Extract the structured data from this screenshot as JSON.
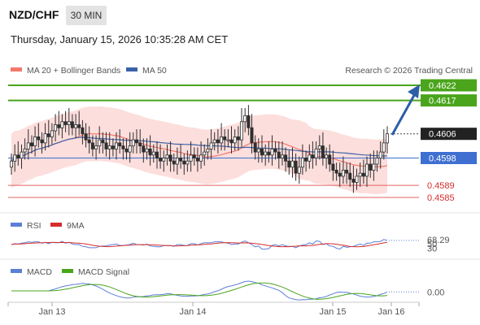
{
  "header": {
    "pair": "NZD/CHF",
    "timeframe": "30 MIN",
    "timestamp": "Thursday, January 15, 2026 10:35:28 AM CET"
  },
  "legend": {
    "ma20": "MA 20 + Bollinger Bands",
    "ma50": "MA 50",
    "credit": "Research © 2026 Trading Central",
    "rsi": "RSI",
    "rsi_ma": "9MA",
    "macd": "MACD",
    "macd_signal": "MACD Signal"
  },
  "colors": {
    "candle": "#2f2f2f",
    "bollinger_fill": "#fbd3d0",
    "ma20": "#f4776b",
    "ma50": "#3a63a8",
    "resistance": "#4aa51c",
    "pivot": "#3f6fd1",
    "support": "#e06060",
    "arrow": "#2c5ea8",
    "rsi": "#5b7fd6",
    "rsi_ma": "#d62c2c",
    "macd": "#5b7fd6",
    "macd_signal": "#4aa51c"
  },
  "chart_data": {
    "type": "candlestick",
    "symbol": "NZD/CHF",
    "interval": "30 MIN",
    "x_ticks": [
      "Jan 13",
      "Jan 14",
      "Jan 15",
      "Jan 16"
    ],
    "y_range": [
      0.4577,
      0.4628
    ],
    "levels": [
      {
        "role": "resistance",
        "label": "0.4622",
        "value": 0.4622
      },
      {
        "role": "resistance",
        "label": "0.4617",
        "value": 0.4617
      },
      {
        "role": "last",
        "label": "0.4606",
        "value": 0.4606
      },
      {
        "role": "pivot",
        "label": "0.4598",
        "value": 0.4598
      },
      {
        "role": "support",
        "label": "0.4589",
        "value": 0.4589
      },
      {
        "role": "support",
        "label": "0.4585",
        "value": 0.4585
      }
    ],
    "closes": [
      0.4597,
      0.4599,
      0.4598,
      0.46,
      0.4601,
      0.4603,
      0.4602,
      0.4605,
      0.4604,
      0.4603,
      0.4606,
      0.4605,
      0.4607,
      0.4609,
      0.4608,
      0.461,
      0.4609,
      0.461,
      0.4608,
      0.4609,
      0.4608,
      0.4606,
      0.4604,
      0.4603,
      0.4601,
      0.4602,
      0.4604,
      0.4603,
      0.4601,
      0.4602,
      0.4601,
      0.4603,
      0.4602,
      0.4601,
      0.46,
      0.4602,
      0.4604,
      0.4603,
      0.4602,
      0.46,
      0.4601,
      0.4599,
      0.46,
      0.4598,
      0.4597,
      0.4598,
      0.4599,
      0.4597,
      0.4596,
      0.4598,
      0.4597,
      0.4596,
      0.4597,
      0.4599,
      0.4598,
      0.4597,
      0.4599,
      0.46,
      0.4601,
      0.4603,
      0.4604,
      0.4603,
      0.4605,
      0.4604,
      0.4604,
      0.4603,
      0.4605,
      0.4604,
      0.461,
      0.4612,
      0.4608,
      0.4603,
      0.46,
      0.4601,
      0.4599,
      0.46,
      0.4599,
      0.4601,
      0.46,
      0.4598,
      0.4599,
      0.4597,
      0.4595,
      0.4597,
      0.4593,
      0.4595,
      0.4598,
      0.4597,
      0.4599,
      0.4598,
      0.4601,
      0.4602,
      0.4598,
      0.4599,
      0.4596,
      0.4594,
      0.4593,
      0.4592,
      0.4594,
      0.4593,
      0.4591,
      0.459,
      0.4592,
      0.4593,
      0.4592,
      0.4596,
      0.4594,
      0.4596,
      0.4598,
      0.46,
      0.4603,
      0.4606
    ],
    "rsi": {
      "label": "68.29",
      "value": 68.29,
      "range": [
        0,
        100
      ],
      "ref_ticks": [
        "30",
        "50"
      ],
      "ref_values": [
        30,
        50
      ]
    },
    "macd": {
      "label": "0.00",
      "value": 0.0
    }
  }
}
